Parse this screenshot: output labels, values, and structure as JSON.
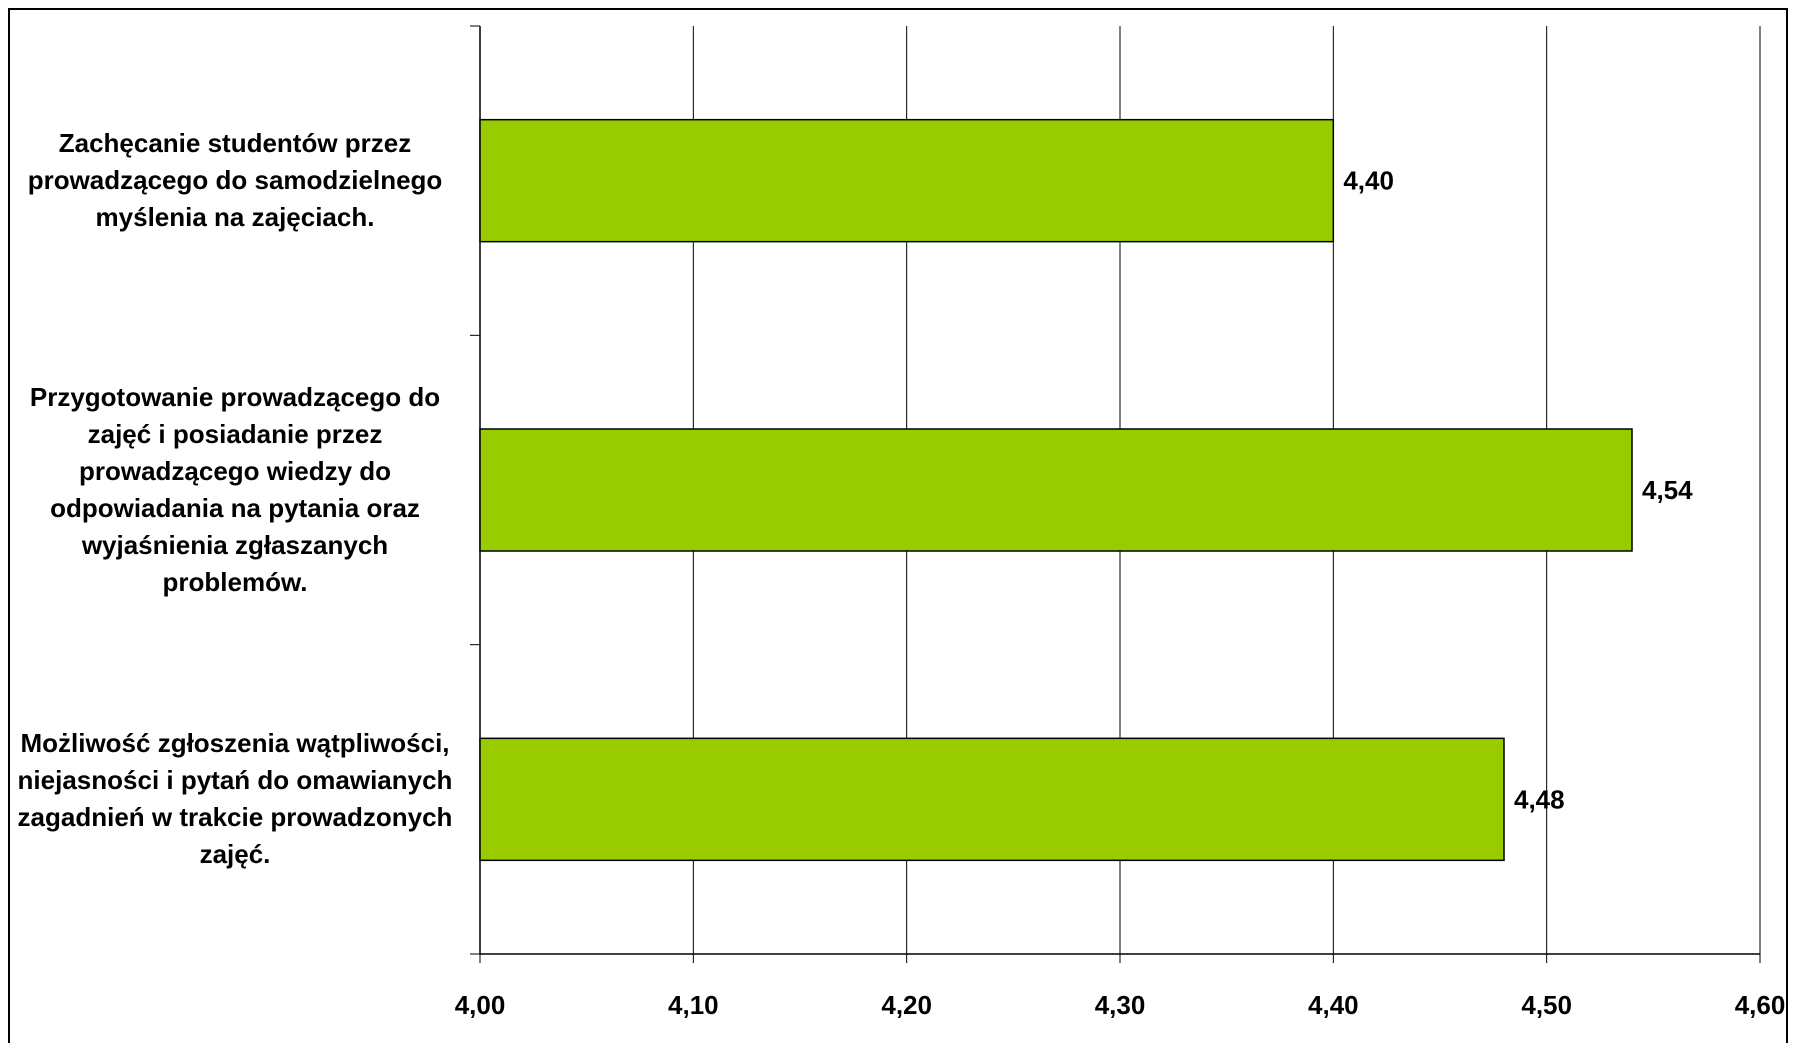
{
  "chart_data": {
    "type": "bar",
    "orientation": "horizontal",
    "categories": [
      "Zachęcanie studentów przez prowadzącego do samodzielnego myślenia na zajęciach.",
      "Przygotowanie prowadzącego do zajęć i posiadanie przez prowadzącego wiedzy do odpowiadania na pytania oraz wyjaśnienia zgłaszanych problemów.",
      "Możliwość zgłoszenia wątpliwości, niejasności i pytań do omawianych zagadnień w trakcie prowadzonych zajęć."
    ],
    "values": [
      4.4,
      4.54,
      4.48
    ],
    "data_labels": [
      "4,40",
      "4,54",
      "4,48"
    ],
    "xlim": [
      4.0,
      4.6
    ],
    "x_ticks": [
      4.0,
      4.1,
      4.2,
      4.3,
      4.4,
      4.5,
      4.6
    ],
    "x_tick_labels": [
      "4,00",
      "4,10",
      "4,20",
      "4,30",
      "4,40",
      "4,50",
      "4,60"
    ],
    "title": "",
    "xlabel": "",
    "ylabel": "",
    "grid": "vertical",
    "legend": "none",
    "bar_color": "#99CC00",
    "bar_edge_color": "#000000"
  }
}
